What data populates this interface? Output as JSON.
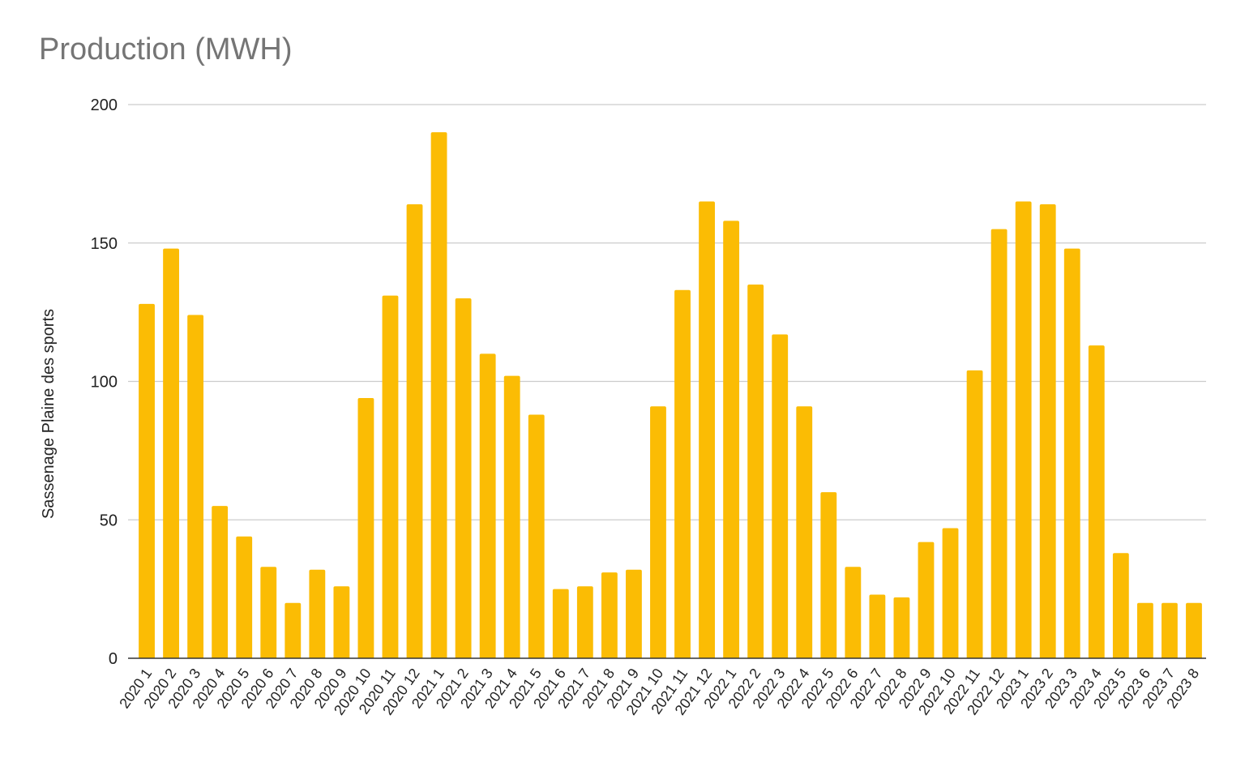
{
  "chart_data": {
    "type": "bar",
    "title": "Production (MWH)",
    "xlabel": "",
    "ylabel": "Sassenage Plaine des sports",
    "ylim": [
      0,
      200
    ],
    "yticks": [
      0,
      50,
      100,
      150,
      200
    ],
    "grid": true,
    "legend": "none",
    "bar_color": "#FBBC04",
    "categories": [
      "2020 1",
      "2020 2",
      "2020 3",
      "2020 4",
      "2020 5",
      "2020 6",
      "2020 7",
      "2020 8",
      "2020 9",
      "2020 10",
      "2020 11",
      "2020 12",
      "2021 1",
      "2021 2",
      "2021 3",
      "2021 4",
      "2021 5",
      "2021 6",
      "2021 7",
      "2021 8",
      "2021 9",
      "2021 10",
      "2021 11",
      "2021 12",
      "2022 1",
      "2022 2",
      "2022 3",
      "2022 4",
      "2022 5",
      "2022 6",
      "2022 7",
      "2022 8",
      "2022 9",
      "2022 10",
      "2022 11",
      "2022 12",
      "2023 1",
      "2023 2",
      "2023 3",
      "2023 4",
      "2023 5",
      "2023 6",
      "2023 7",
      "2023 8"
    ],
    "values": [
      128,
      148,
      124,
      55,
      44,
      33,
      20,
      32,
      26,
      94,
      131,
      164,
      190,
      130,
      110,
      102,
      88,
      25,
      26,
      31,
      32,
      91,
      133,
      165,
      158,
      135,
      117,
      91,
      60,
      33,
      23,
      22,
      42,
      47,
      104,
      155,
      165,
      164,
      148,
      113,
      38,
      20,
      20,
      20
    ]
  }
}
